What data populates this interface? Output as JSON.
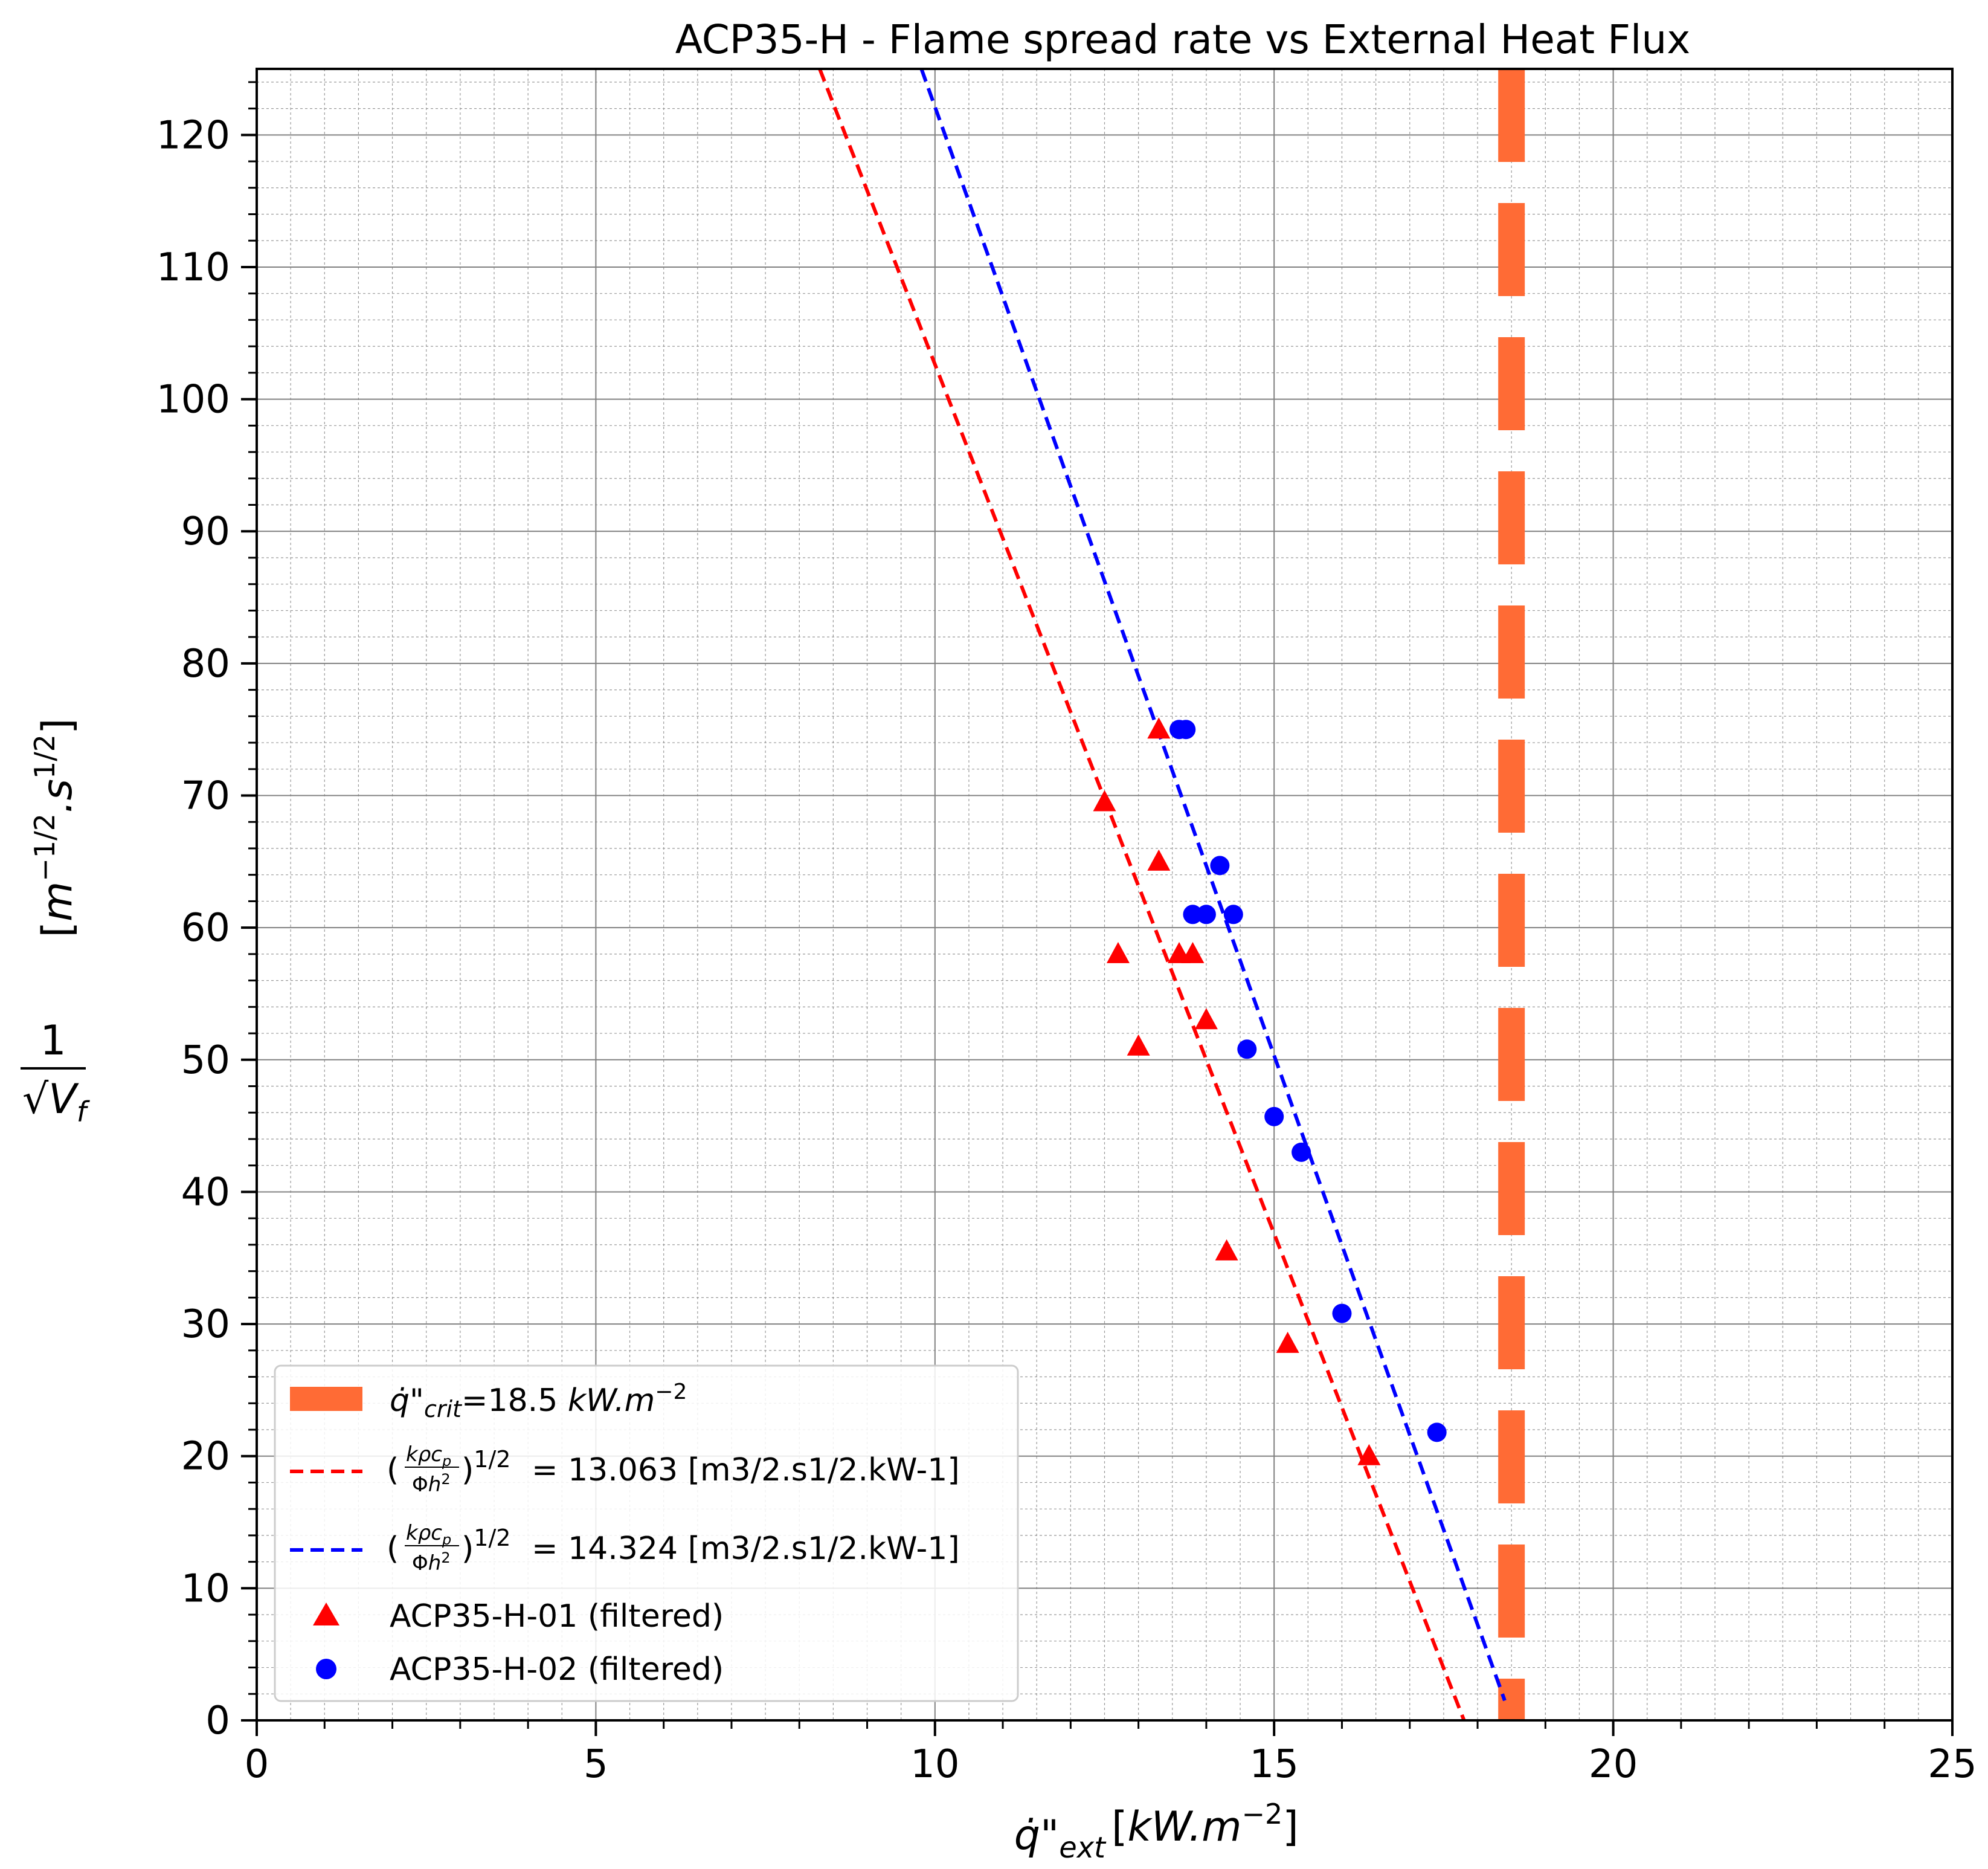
{
  "chart_data": {
    "type": "scatter",
    "title": "ACP35-H - Flame spread rate vs External Heat Flux",
    "xlabel": "q̇\"ext [kW.m⁻²]",
    "ylabel": "1/√Vf  [m^-1/2.s^1/2]",
    "xlim": [
      0,
      25
    ],
    "ylim": [
      0,
      125
    ],
    "x_ticks": [
      0,
      5,
      10,
      15,
      20,
      25
    ],
    "y_ticks": [
      0,
      10,
      20,
      30,
      40,
      50,
      60,
      70,
      80,
      90,
      100,
      110,
      120
    ],
    "x_tick_labels": [
      "0",
      "5",
      "10",
      "15",
      "20",
      "25"
    ],
    "y_tick_labels": [
      "0",
      "10",
      "20",
      "30",
      "40",
      "50",
      "60",
      "70",
      "80",
      "90",
      "100",
      "110",
      "120"
    ],
    "grid": true,
    "legend_position": "lower-left",
    "critical_flux": {
      "x": 18.5,
      "label": "q̇\"crit=18.5 kW.m⁻²",
      "color": "#ff6b35"
    },
    "fit_lines": [
      {
        "label_value": "= 13.063 [m3/2.s1/2.kW-1]",
        "color": "#ff0000",
        "points": [
          [
            8.3,
            125
          ],
          [
            17.8,
            0
          ]
        ]
      },
      {
        "label_value": "= 14.324 [m3/2.s1/2.kW-1]",
        "color": "#0000ff",
        "points": [
          [
            9.8,
            125
          ],
          [
            18.4,
            1.5
          ]
        ]
      }
    ],
    "series": [
      {
        "name": "ACP35-H-01 (filtered)",
        "marker": "triangle",
        "color": "#ff0000",
        "points": [
          [
            13.3,
            75.0
          ],
          [
            12.5,
            69.5
          ],
          [
            13.3,
            65.0
          ],
          [
            12.7,
            58.0
          ],
          [
            13.6,
            58.0
          ],
          [
            13.8,
            58.0
          ],
          [
            14.0,
            53.0
          ],
          [
            13.0,
            51.0
          ],
          [
            14.3,
            35.5
          ],
          [
            15.2,
            28.5
          ],
          [
            16.4,
            20.0
          ]
        ]
      },
      {
        "name": "ACP35-H-02 (filtered)",
        "marker": "circle",
        "color": "#0000ff",
        "points": [
          [
            13.6,
            75.0
          ],
          [
            13.7,
            75.0
          ],
          [
            14.2,
            64.7
          ],
          [
            13.8,
            61.0
          ],
          [
            14.0,
            61.0
          ],
          [
            14.4,
            61.0
          ],
          [
            14.6,
            50.8
          ],
          [
            15.0,
            45.7
          ],
          [
            15.4,
            43.0
          ],
          [
            16.0,
            30.8
          ],
          [
            17.4,
            21.8
          ]
        ]
      }
    ]
  }
}
